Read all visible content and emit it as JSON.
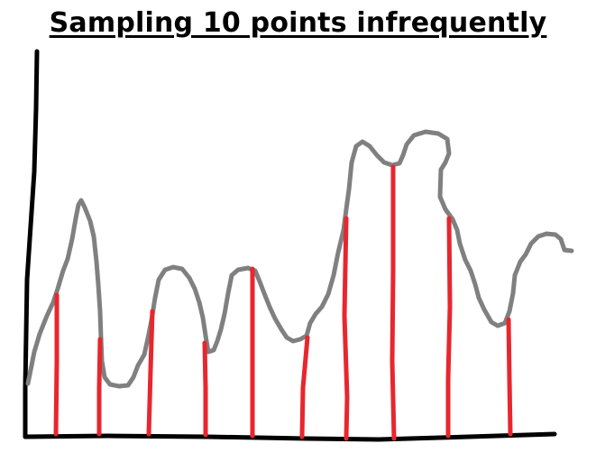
{
  "title": "Sampling 10 points infrequently",
  "colors": {
    "axis": "#000000",
    "signal": "#808080",
    "samples": "#e8262d"
  },
  "chart_data": {
    "type": "line",
    "title": "Sampling 10 points infrequently",
    "xlabel": "",
    "ylabel": "",
    "sample_count": 10
  }
}
